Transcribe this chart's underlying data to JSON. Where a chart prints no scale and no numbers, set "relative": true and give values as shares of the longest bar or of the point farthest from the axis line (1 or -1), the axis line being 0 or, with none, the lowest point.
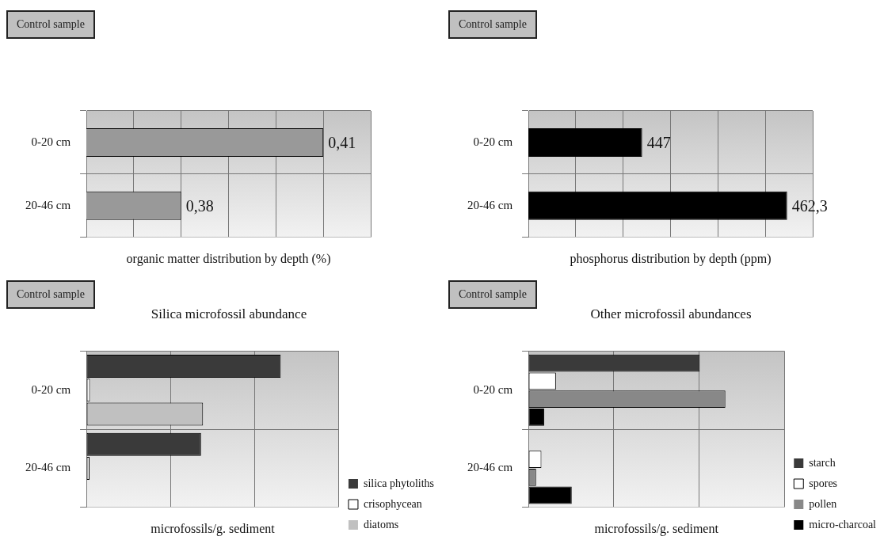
{
  "chart_data": [
    {
      "type": "bar",
      "orientation": "horizontal",
      "xlabel": "organic matter distribution by depth (%)",
      "annotations": [
        "Control sample"
      ],
      "categories": [
        "0-20 cm",
        "20-46 cm"
      ],
      "values": [
        0.41,
        0.38
      ],
      "value_labels": [
        "0,41",
        "0,38"
      ],
      "color": "#999999",
      "xlim": [
        0.36,
        0.42
      ],
      "tick_labels": "y",
      "grid": true
    },
    {
      "type": "bar",
      "orientation": "horizontal",
      "xlabel": "phosphorus distribution by depth (ppm)",
      "annotations": [
        "Control sample"
      ],
      "categories": [
        "0-20 cm",
        "20-46 cm"
      ],
      "values": [
        447,
        462.3
      ],
      "value_labels": [
        "447",
        "462,3"
      ],
      "color": "#000000",
      "xlim": [
        435,
        465
      ],
      "tick_labels": "y",
      "grid": true
    },
    {
      "type": "bar",
      "orientation": "horizontal",
      "relative": true,
      "title": "Silica microfossil abundance",
      "xlabel": "microfossils/g. sediment",
      "annotations": [
        "Control sample"
      ],
      "categories": [
        "0-20 cm",
        "20-46 cm"
      ],
      "series": [
        {
          "name": "silica phytoliths",
          "color": "#3a3a3a",
          "values": [
            1,
            0.59
          ]
        },
        {
          "name": "crisophycean",
          "color": "#ffffff",
          "values": [
            0.018,
            0.016
          ]
        },
        {
          "name": "diatoms",
          "color": "#c0c0c0",
          "values": [
            0.6,
            null
          ]
        }
      ],
      "tick_labels": "y",
      "grid": true,
      "legend": "bottom right"
    },
    {
      "type": "bar",
      "orientation": "horizontal",
      "relative": true,
      "title": "Other microfossil abundances",
      "xlabel": "microfossils/g. sediment",
      "annotations": [
        "Control sample"
      ],
      "categories": [
        "0-20 cm",
        "20-46 cm"
      ],
      "series": [
        {
          "name": "starch",
          "color": "#3a3a3a",
          "values": [
            0.87,
            null
          ]
        },
        {
          "name": "spores",
          "color": "#ffffff",
          "values": [
            0.14,
            0.066
          ]
        },
        {
          "name": "pollen",
          "color": "#888888",
          "values": [
            1,
            0.039
          ]
        },
        {
          "name": "micro-charcoal",
          "color": "#000000",
          "values": [
            0.08,
            0.22
          ]
        }
      ],
      "tick_labels": "y",
      "grid": true,
      "legend": "bottom right"
    }
  ]
}
